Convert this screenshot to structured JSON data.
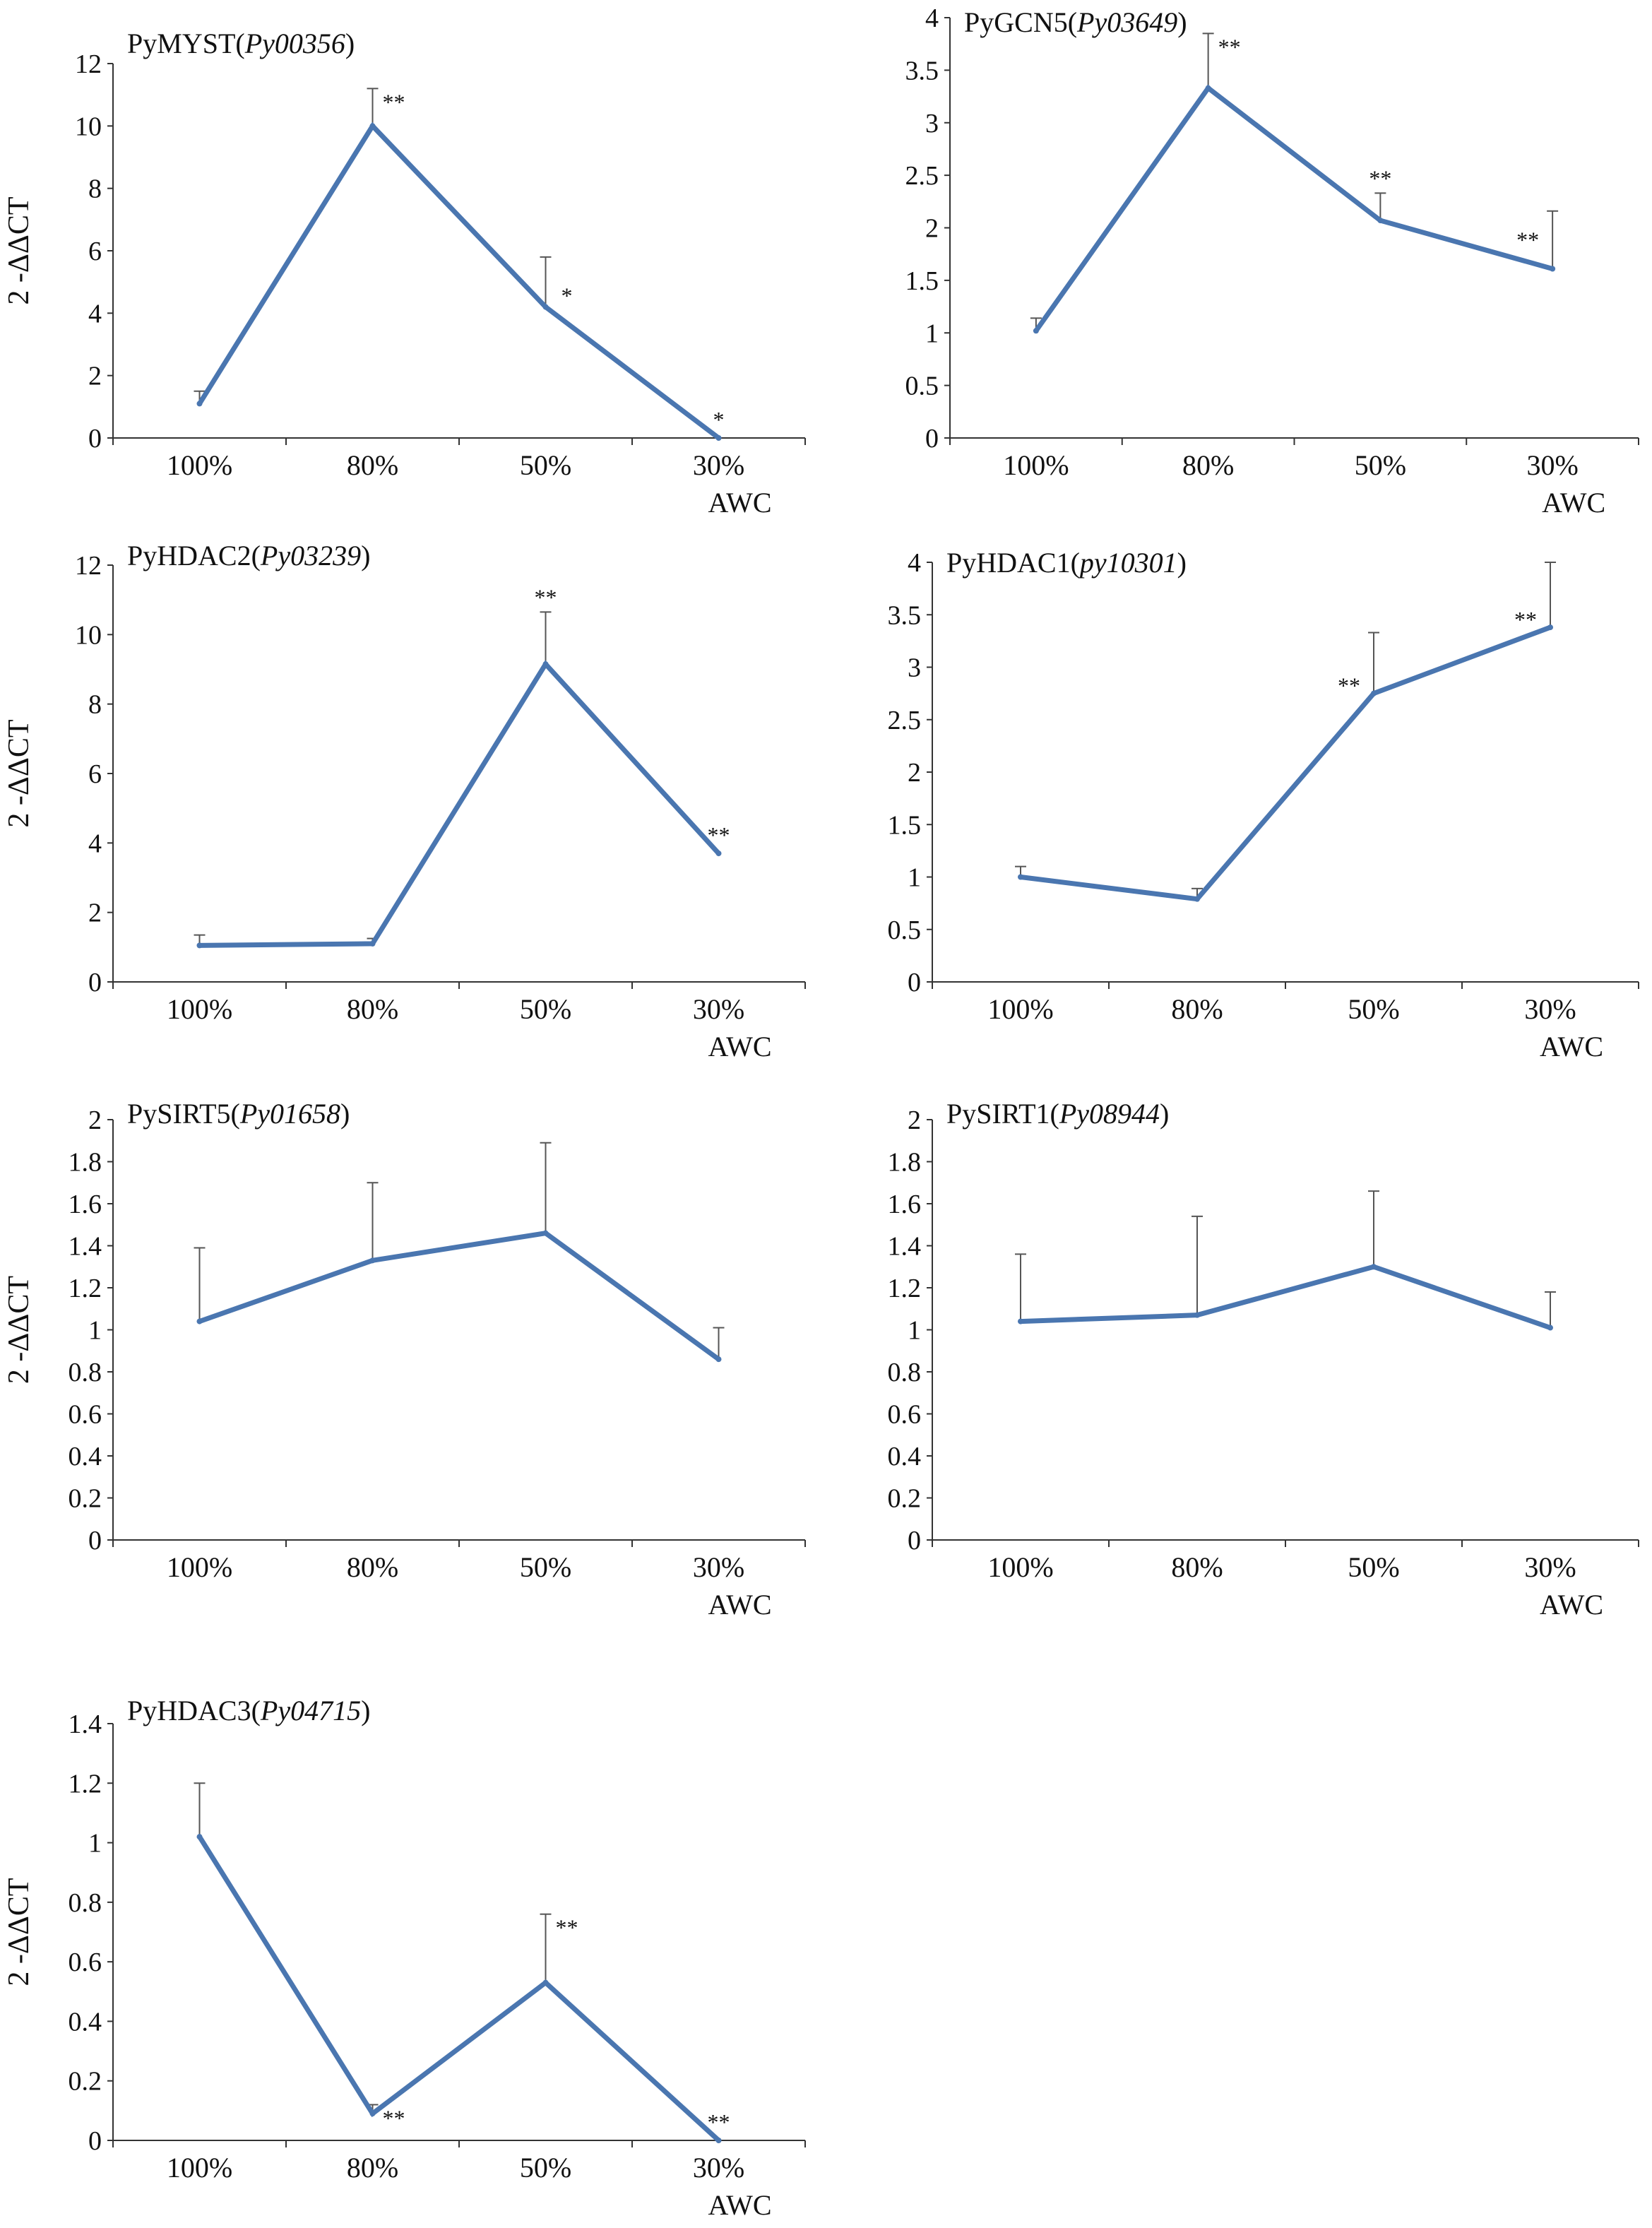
{
  "colors": {
    "line": "#4a76b0",
    "axis": "#333333",
    "error": "#555555"
  },
  "chart_data": [
    {
      "type": "line",
      "title_main": "PyMYST(",
      "title_gene": "Py00356",
      "title_end": ")",
      "ylabel": "2 -ΔΔCT",
      "xlabel": "AWC",
      "categories": [
        "100%",
        "80%",
        "50%",
        "30%"
      ],
      "values": [
        1.1,
        10.0,
        4.2,
        0.0
      ],
      "errors": [
        0.4,
        1.2,
        1.6,
        0.0
      ],
      "significance": [
        "",
        "**",
        "*",
        "*"
      ],
      "ylim": [
        0,
        12
      ],
      "yticks": [
        0,
        2,
        4,
        6,
        8,
        10,
        12
      ],
      "ytick_labels": [
        "0",
        "2",
        "4",
        "6",
        "8",
        "10",
        "12"
      ]
    },
    {
      "type": "line",
      "title_main": "PyGCN5(",
      "title_gene": "Py03649",
      "title_end": ")",
      "ylabel": "",
      "xlabel": "AWC",
      "categories": [
        "100%",
        "80%",
        "50%",
        "30%"
      ],
      "values": [
        1.02,
        3.33,
        2.07,
        1.61
      ],
      "errors": [
        0.12,
        0.52,
        0.26,
        0.55
      ],
      "significance": [
        "",
        "**",
        "**",
        "**"
      ],
      "ylim": [
        0,
        4
      ],
      "yticks": [
        0,
        0.5,
        1,
        1.5,
        2,
        2.5,
        3,
        3.5,
        4
      ],
      "ytick_labels": [
        "0",
        "0.5",
        "1",
        "1.5",
        "2",
        "2.5",
        "3",
        "3.5",
        "4"
      ]
    },
    {
      "type": "line",
      "title_main": "PyHDAC2(",
      "title_gene": "Py03239",
      "title_end": ")",
      "ylabel": "2 -ΔΔCT",
      "xlabel": "AWC",
      "categories": [
        "100%",
        "80%",
        "50%",
        "30%"
      ],
      "values": [
        1.05,
        1.1,
        9.15,
        3.7
      ],
      "errors": [
        0.3,
        0.15,
        1.5,
        0.0
      ],
      "significance": [
        "",
        "",
        "**",
        "**"
      ],
      "ylim": [
        0,
        12
      ],
      "yticks": [
        0,
        2,
        4,
        6,
        8,
        10,
        12
      ],
      "ytick_labels": [
        "0",
        "2",
        "4",
        "6",
        "8",
        "10",
        "12"
      ]
    },
    {
      "type": "line",
      "title_main": "PyHDAC1(",
      "title_gene": "py10301",
      "title_end": ")",
      "ylabel": "",
      "xlabel": "AWC",
      "categories": [
        "100%",
        "80%",
        "50%",
        "30%"
      ],
      "values": [
        1.0,
        0.79,
        2.75,
        3.38
      ],
      "errors": [
        0.1,
        0.1,
        0.58,
        0.62
      ],
      "significance": [
        "",
        "",
        "**",
        "**"
      ],
      "ylim": [
        0,
        4
      ],
      "yticks": [
        0,
        0.5,
        1,
        1.5,
        2,
        2.5,
        3,
        3.5,
        4
      ],
      "ytick_labels": [
        "0",
        "0.5",
        "1",
        "1.5",
        "2",
        "2.5",
        "3",
        "3.5",
        "4"
      ]
    },
    {
      "type": "line",
      "title_main": "PySIRT5(",
      "title_gene": "Py01658",
      "title_end": ")",
      "ylabel": "2 -ΔΔCT",
      "xlabel": "AWC",
      "categories": [
        "100%",
        "80%",
        "50%",
        "30%"
      ],
      "values": [
        1.04,
        1.33,
        1.46,
        0.86
      ],
      "errors": [
        0.35,
        0.37,
        0.43,
        0.15
      ],
      "significance": [
        "",
        "",
        "",
        ""
      ],
      "ylim": [
        0,
        2
      ],
      "yticks": [
        0,
        0.2,
        0.4,
        0.6,
        0.8,
        1,
        1.2,
        1.4,
        1.6,
        1.8,
        2
      ],
      "ytick_labels": [
        "0",
        "0.2",
        "0.4",
        "0.6",
        "0.8",
        "1",
        "1.2",
        "1.4",
        "1.6",
        "1.8",
        "2"
      ]
    },
    {
      "type": "line",
      "title_main": "PySIRT1(",
      "title_gene": "Py08944",
      "title_end": ")",
      "ylabel": "",
      "xlabel": "AWC",
      "categories": [
        "100%",
        "80%",
        "50%",
        "30%"
      ],
      "values": [
        1.04,
        1.07,
        1.3,
        1.01
      ],
      "errors": [
        0.32,
        0.47,
        0.36,
        0.17
      ],
      "significance": [
        "",
        "",
        "",
        ""
      ],
      "ylim": [
        0,
        2
      ],
      "yticks": [
        0,
        0.2,
        0.4,
        0.6,
        0.8,
        1,
        1.2,
        1.4,
        1.6,
        1.8,
        2
      ],
      "ytick_labels": [
        "0",
        "0.2",
        "0.4",
        "0.6",
        "0.8",
        "1",
        "1.2",
        "1.4",
        "1.6",
        "1.8",
        "2"
      ]
    },
    {
      "type": "line",
      "title_main": "PyHDAC3(",
      "title_gene": "Py04715",
      "title_end": ")",
      "ylabel": "2 -ΔΔCT",
      "xlabel": "AWC",
      "categories": [
        "100%",
        "80%",
        "50%",
        "30%"
      ],
      "values": [
        1.02,
        0.09,
        0.53,
        0.0
      ],
      "errors": [
        0.18,
        0.03,
        0.23,
        0.0
      ],
      "significance": [
        "",
        "**",
        "**",
        "**"
      ],
      "ylim": [
        0,
        1.4
      ],
      "yticks": [
        0,
        0.2,
        0.4,
        0.6,
        0.8,
        1,
        1.2,
        1.4
      ],
      "ytick_labels": [
        "0",
        "0.2",
        "0.4",
        "0.6",
        "0.8",
        "1",
        "1.2",
        "1.4"
      ]
    }
  ]
}
